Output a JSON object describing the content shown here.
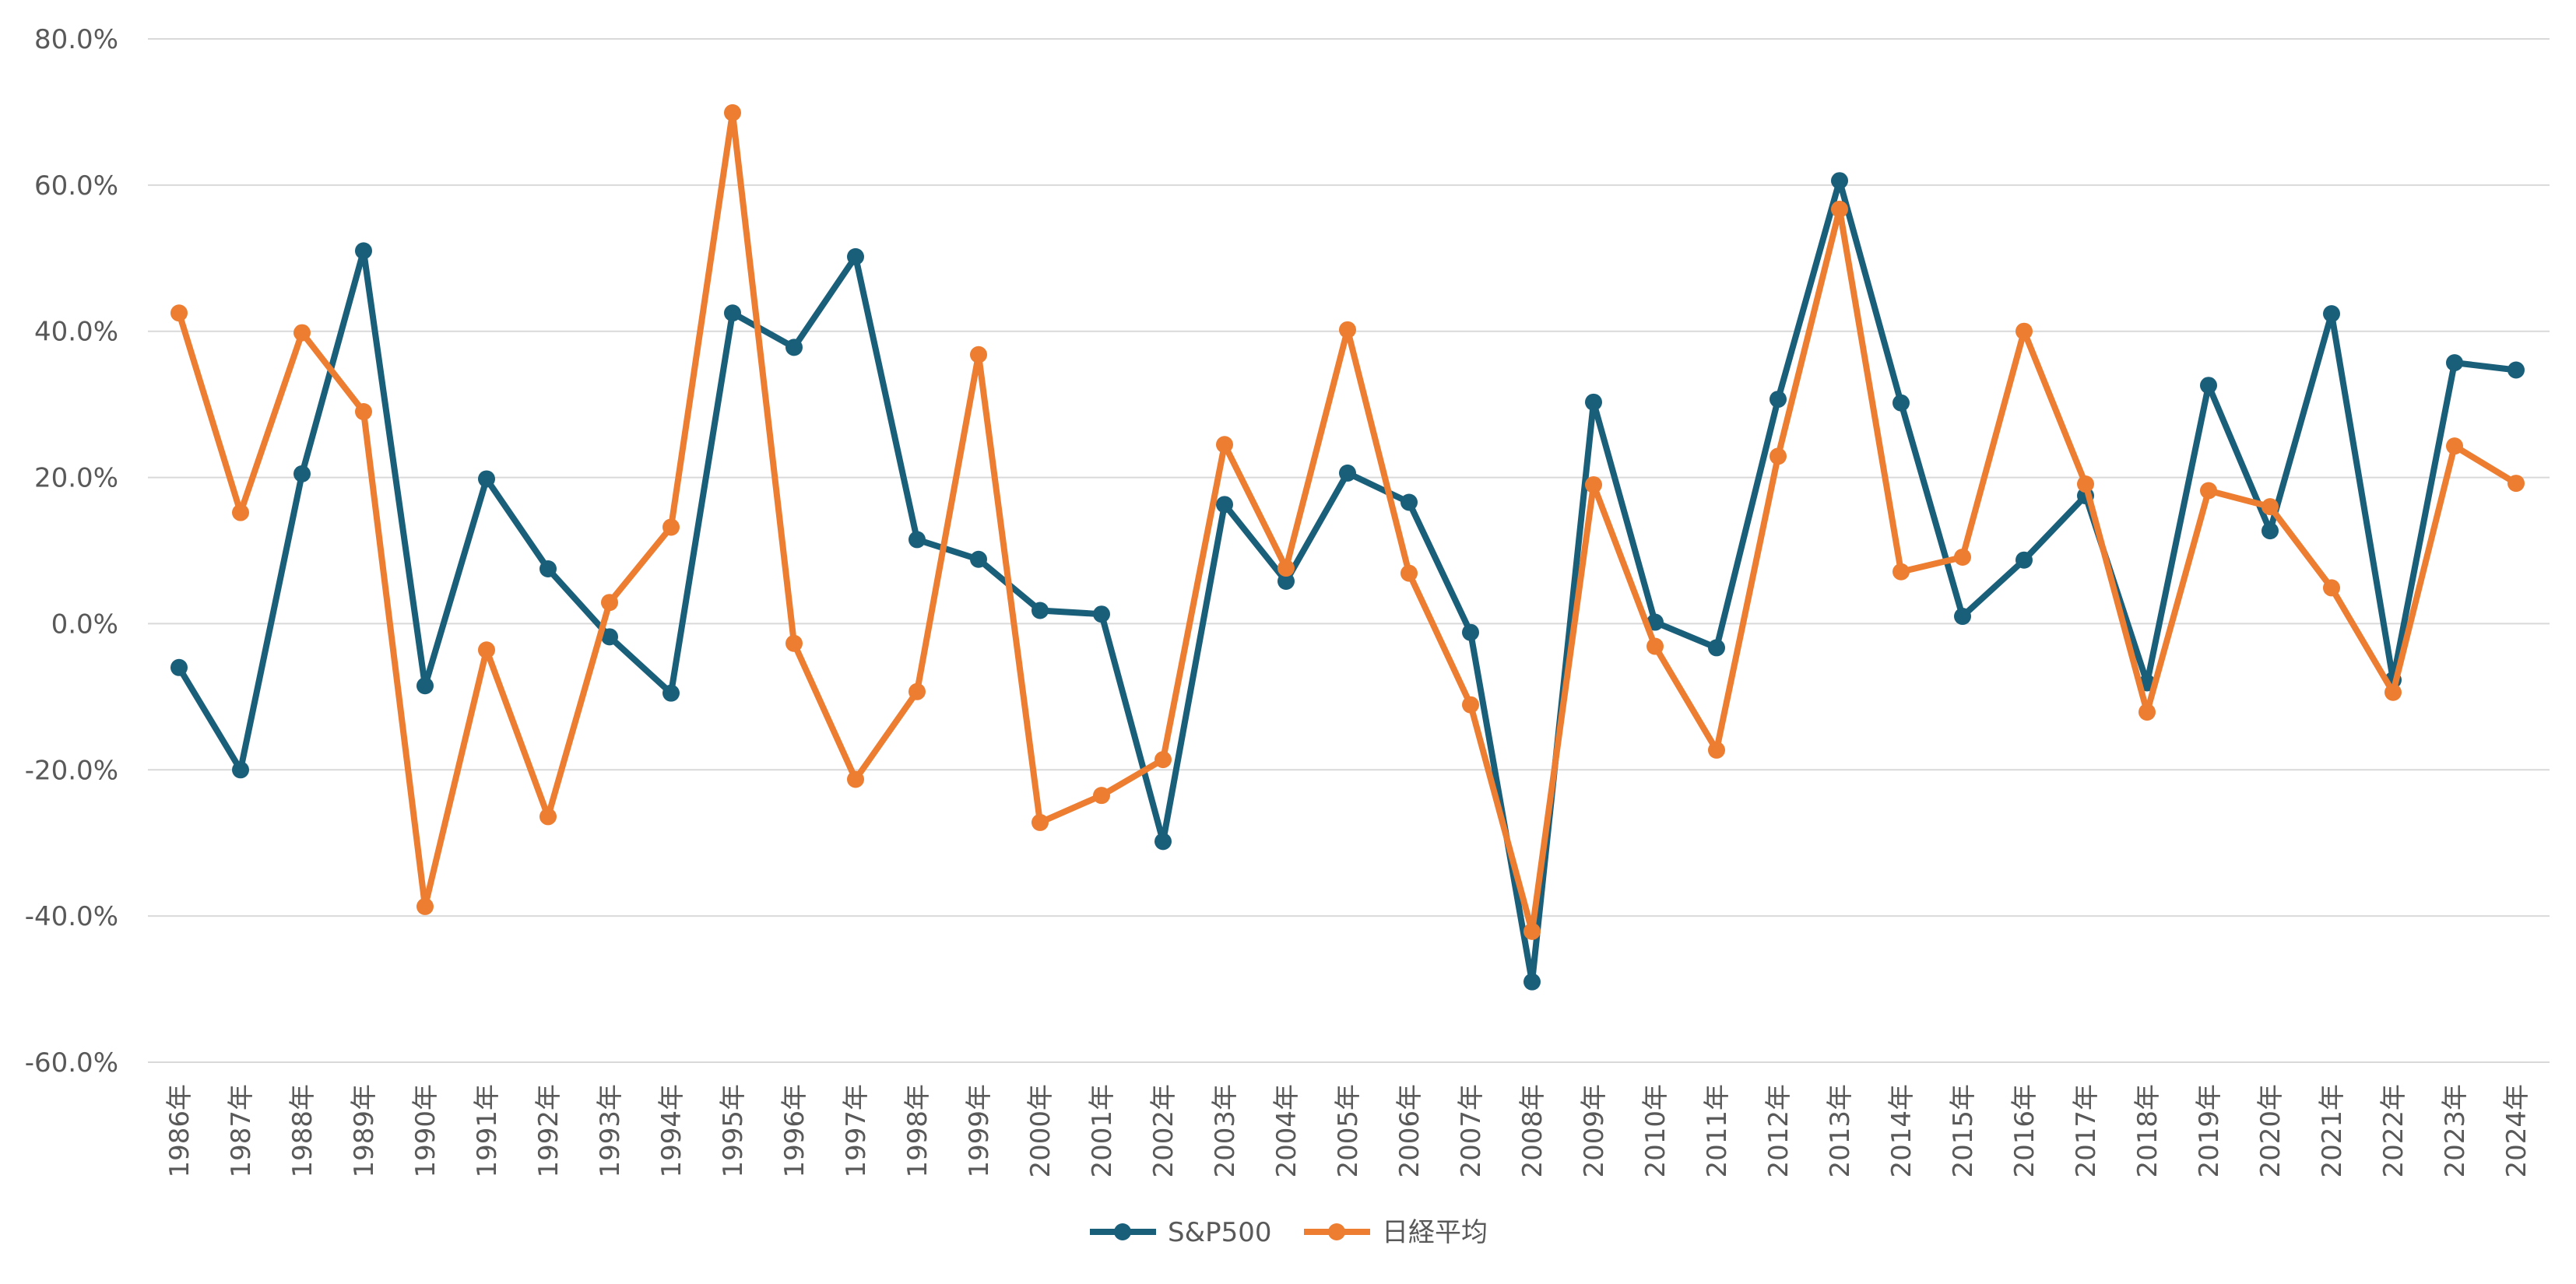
{
  "chart_data": {
    "type": "line",
    "categories": [
      "1986年",
      "1987年",
      "1988年",
      "1989年",
      "1990年",
      "1991年",
      "1992年",
      "1993年",
      "1994年",
      "1995年",
      "1996年",
      "1997年",
      "1998年",
      "1999年",
      "2000年",
      "2001年",
      "2002年",
      "2003年",
      "2004年",
      "2005年",
      "2006年",
      "2007年",
      "2008年",
      "2009年",
      "2010年",
      "2011年",
      "2012年",
      "2013年",
      "2014年",
      "2015年",
      "2016年",
      "2017年",
      "2018年",
      "2019年",
      "2020年",
      "2021年",
      "2022年",
      "2023年",
      "2024年"
    ],
    "series": [
      {
        "name": "S&P500",
        "color": "#1a5f7a",
        "values": [
          -6.0,
          -20.0,
          20.5,
          51.0,
          -8.5,
          19.8,
          7.5,
          -1.8,
          -9.5,
          42.5,
          37.8,
          50.2,
          11.5,
          8.8,
          1.8,
          1.3,
          -29.8,
          16.3,
          5.8,
          20.6,
          16.6,
          -1.2,
          -49.0,
          30.3,
          0.2,
          -3.3,
          30.7,
          60.6,
          30.2,
          1.0,
          8.7,
          17.5,
          -8.1,
          32.6,
          12.7,
          42.4,
          -7.7,
          35.7,
          34.7
        ]
      },
      {
        "name": "日経平均",
        "color": "#ed7d31",
        "values": [
          42.5,
          15.2,
          39.8,
          29.0,
          -38.7,
          -3.6,
          -26.4,
          2.9,
          13.2,
          69.9,
          -2.7,
          -21.3,
          -9.3,
          36.8,
          -27.2,
          -23.5,
          -18.6,
          24.5,
          7.6,
          40.2,
          6.9,
          -11.1,
          -42.1,
          19.0,
          -3.1,
          -17.3,
          22.9,
          56.7,
          7.1,
          9.1,
          40.0,
          19.1,
          -12.1,
          18.2,
          16.0,
          4.9,
          -9.4,
          24.3,
          19.2
        ]
      }
    ],
    "y_ticks": [
      "80.0%",
      "60.0%",
      "40.0%",
      "20.0%",
      "0.0%",
      "-20.0%",
      "-40.0%",
      "-60.0%"
    ],
    "ylim": [
      -60,
      80
    ],
    "grid": true,
    "legend_position": "bottom"
  }
}
